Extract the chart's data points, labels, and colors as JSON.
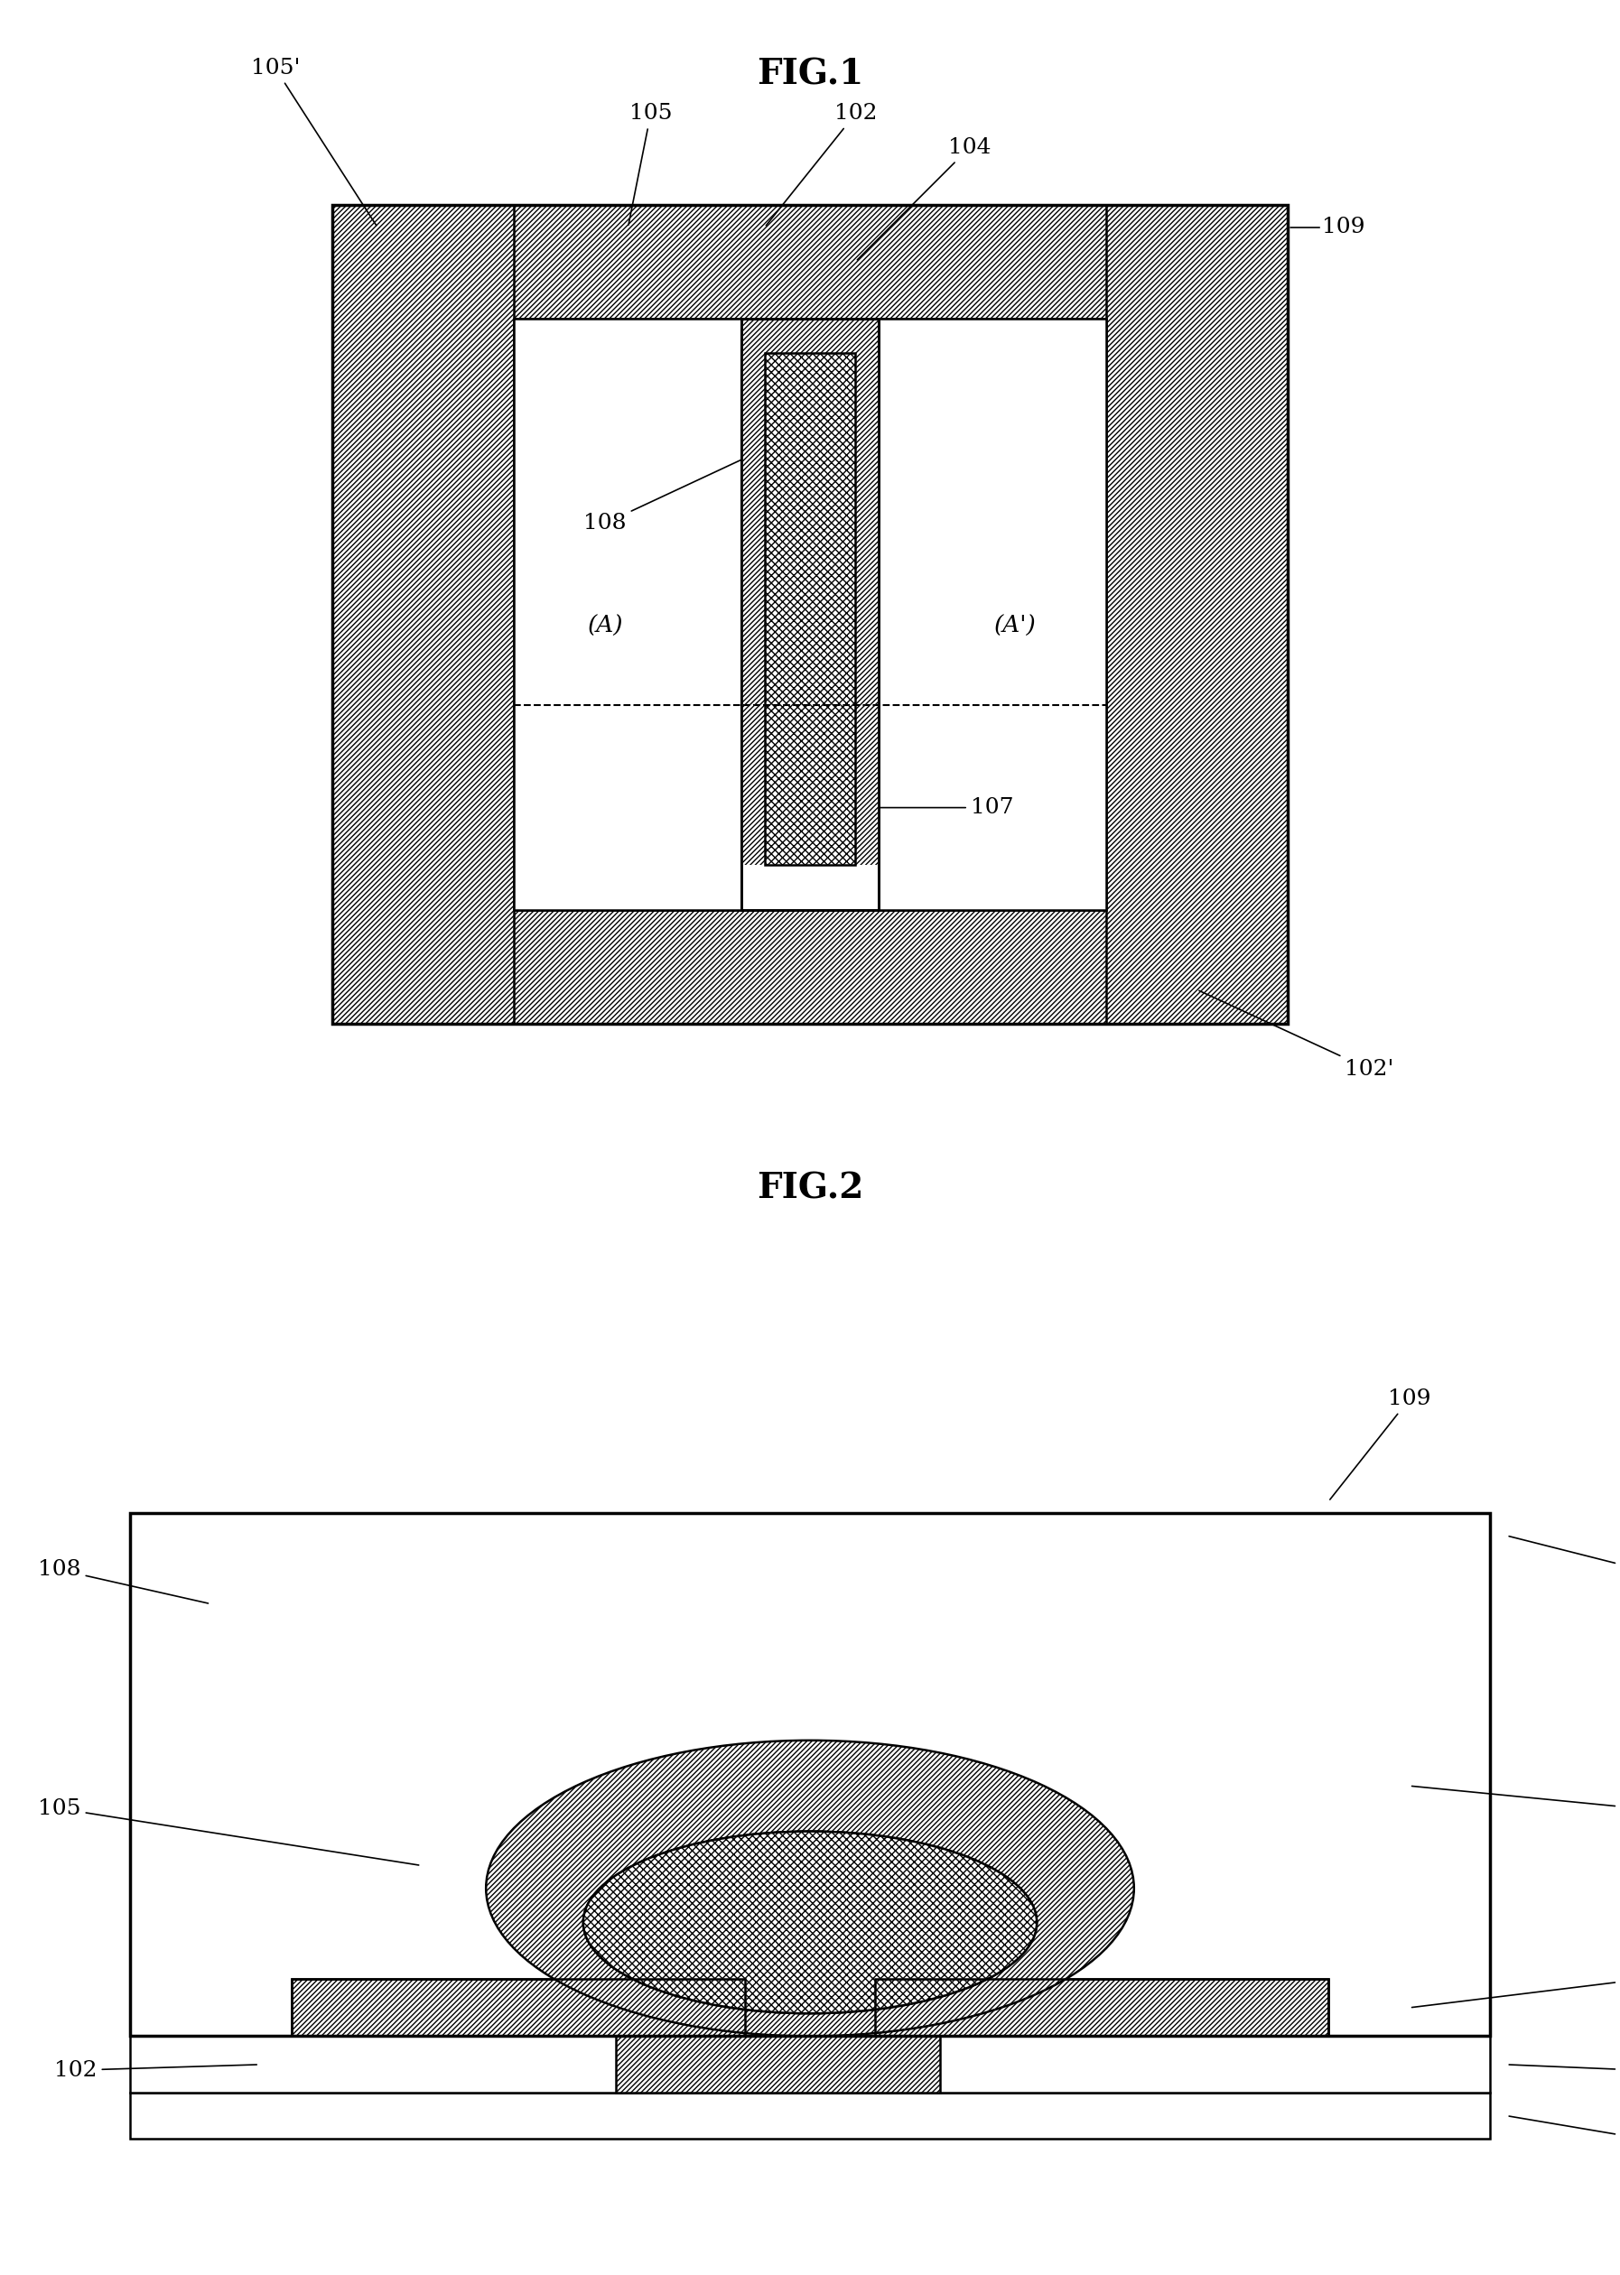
{
  "fig1_title": "FIG.1",
  "fig2_title": "FIG.2",
  "bg_color": "#ffffff",
  "line_color": "#000000",
  "hatch_diagonal": "/",
  "hatch_cross": "x",
  "label_fontsize": 18,
  "title_fontsize": 28
}
